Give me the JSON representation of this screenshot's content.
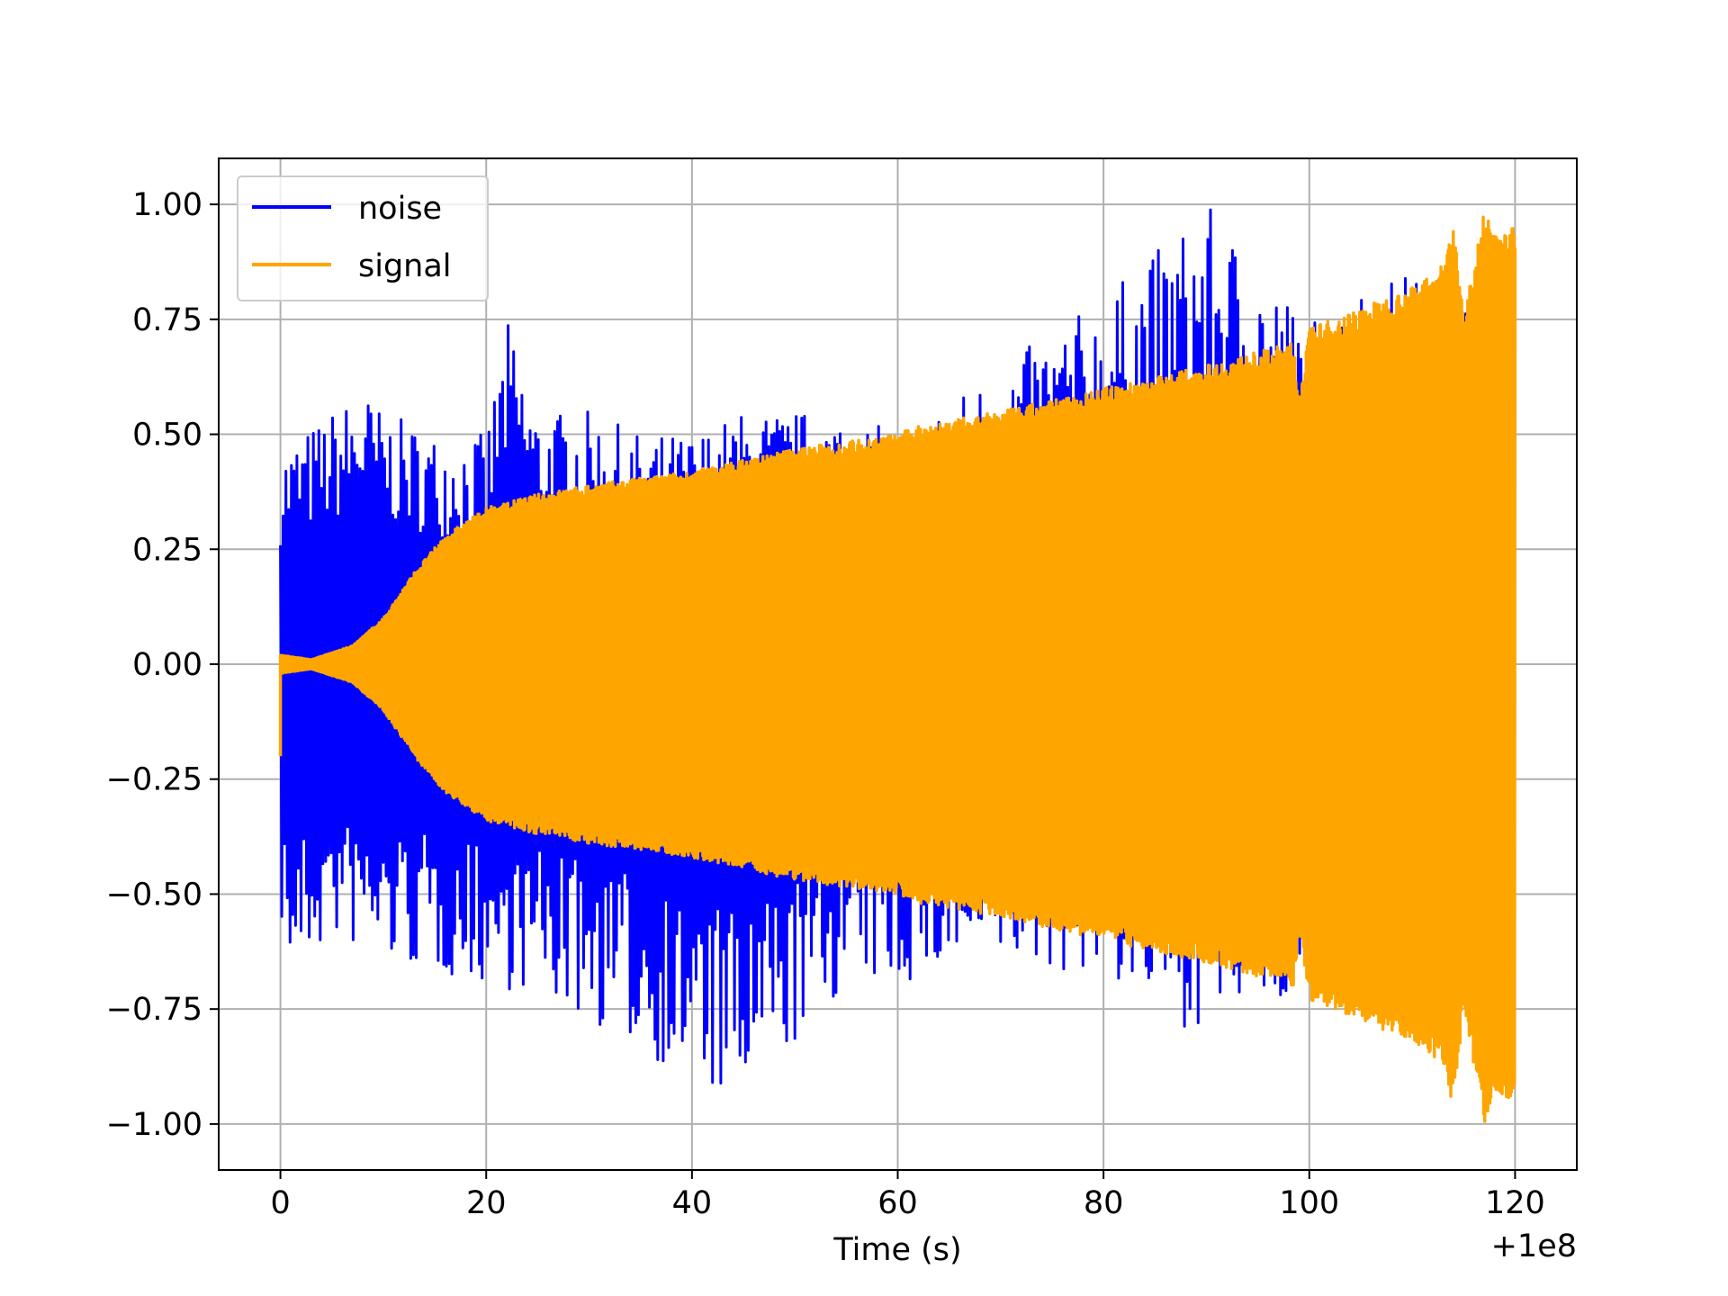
{
  "chart_data": {
    "type": "line",
    "title": "",
    "xlabel": "Time (s)",
    "ylabel": "",
    "x_offset_label": "+1e8",
    "xlim": [
      -6,
      126
    ],
    "ylim": [
      -1.1,
      1.1
    ],
    "x_ticks": [
      0,
      20,
      40,
      60,
      80,
      100,
      120
    ],
    "x_tick_labels": [
      "0",
      "20",
      "40",
      "60",
      "80",
      "100",
      "120"
    ],
    "y_ticks": [
      1.0,
      0.75,
      0.5,
      0.25,
      0.0,
      -0.25,
      -0.5,
      -0.75,
      -1.0
    ],
    "y_tick_labels": [
      "1.00",
      "0.75",
      "0.50",
      "0.25",
      "0.00",
      "−0.25",
      "−0.50",
      "−0.75",
      "−1.00"
    ],
    "grid": true,
    "legend_position": "top-left",
    "series": [
      {
        "name": "noise",
        "color": "#0000ff",
        "x_range": [
          0,
          120
        ],
        "envelope_upper": [
          [
            0,
            0.47
          ],
          [
            2,
            0.5
          ],
          [
            5,
            0.55
          ],
          [
            8,
            0.6
          ],
          [
            10,
            0.55
          ],
          [
            15,
            0.5
          ],
          [
            20,
            0.5
          ],
          [
            22,
            0.75
          ],
          [
            25,
            0.55
          ],
          [
            30,
            0.55
          ],
          [
            35,
            0.5
          ],
          [
            40,
            0.5
          ],
          [
            45,
            0.55
          ],
          [
            50,
            0.55
          ],
          [
            55,
            0.55
          ],
          [
            60,
            0.5
          ],
          [
            80,
            0.8
          ],
          [
            90,
            1.0
          ],
          [
            100,
            0.75
          ],
          [
            106,
            0.85
          ]
        ],
        "envelope_lower": [
          [
            0,
            -0.55
          ],
          [
            1,
            -0.69
          ],
          [
            5,
            -0.6
          ],
          [
            10,
            -0.65
          ],
          [
            18,
            -0.69
          ],
          [
            25,
            -0.72
          ],
          [
            35,
            -0.84
          ],
          [
            44.5,
            -0.98
          ],
          [
            55,
            -0.7
          ],
          [
            60,
            -0.7
          ],
          [
            70,
            -0.65
          ],
          [
            80,
            -0.68
          ],
          [
            88,
            -0.79
          ],
          [
            93,
            -0.77
          ],
          [
            100,
            -0.7
          ]
        ]
      },
      {
        "name": "signal",
        "color": "#ffa500",
        "x_range": [
          0,
          120
        ],
        "envelope": [
          [
            0,
            0.02
          ],
          [
            3,
            0.01
          ],
          [
            7,
            0.04
          ],
          [
            10,
            0.1
          ],
          [
            13,
            0.2
          ],
          [
            16,
            0.28
          ],
          [
            20,
            0.34
          ],
          [
            25,
            0.37
          ],
          [
            30,
            0.39
          ],
          [
            40,
            0.42
          ],
          [
            50,
            0.47
          ],
          [
            60,
            0.5
          ],
          [
            62,
            0.52
          ],
          [
            65,
            0.53
          ],
          [
            70,
            0.55
          ],
          [
            80,
            0.6
          ],
          [
            90,
            0.65
          ],
          [
            98.5,
            0.7
          ],
          [
            99,
            0.58
          ],
          [
            100,
            0.73
          ],
          [
            110,
            0.82
          ],
          [
            113,
            0.87
          ],
          [
            114,
            0.97
          ],
          [
            115,
            0.75
          ],
          [
            117,
            1.0
          ],
          [
            118,
            0.93
          ],
          [
            120,
            0.95
          ]
        ],
        "initial_spike": -0.2
      }
    ]
  }
}
